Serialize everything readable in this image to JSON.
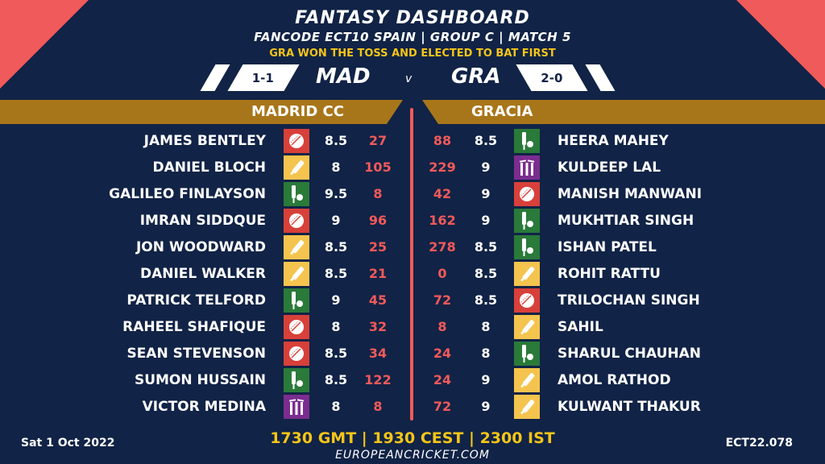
{
  "header": {
    "title": "FANTASY DASHBOARD",
    "subtitle": "FANCODE ECT10 SPAIN | GROUP C | MATCH 5",
    "toss": "GRA WON THE TOSS AND ELECTED TO BAT FIRST"
  },
  "matchup": {
    "left_record": "1-1",
    "left_code": "MAD",
    "vs": "v",
    "right_code": "GRA",
    "right_record": "2-0"
  },
  "teams": {
    "left_name": "MADRID CC",
    "right_name": "GRACIA"
  },
  "colors": {
    "background": "#112346",
    "accent_red": "#f15a5a",
    "band_gold": "#a8761a",
    "toss_yellow": "#f5c518",
    "bowler": "#d8403a",
    "batter": "#f5c44e",
    "allrounder": "#2a7a3a",
    "wicketkeeper": "#7b2d8f"
  },
  "left_players": [
    {
      "name": "JAMES BENTLEY",
      "role": "bowler-icon",
      "credit": "8.5",
      "points": "27"
    },
    {
      "name": "DANIEL BLOCH",
      "role": "batter-icon",
      "credit": "8",
      "points": "105"
    },
    {
      "name": "GALILEO FINLAYSON",
      "role": "allrounder-icon",
      "credit": "9.5",
      "points": "8"
    },
    {
      "name": "IMRAN SIDDQUE",
      "role": "bowler-icon",
      "credit": "9",
      "points": "96"
    },
    {
      "name": "JON WOODWARD",
      "role": "batter-icon",
      "credit": "8.5",
      "points": "25"
    },
    {
      "name": "DANIEL WALKER",
      "role": "batter-icon",
      "credit": "8.5",
      "points": "21"
    },
    {
      "name": "PATRICK TELFORD",
      "role": "allrounder-icon",
      "credit": "9",
      "points": "45"
    },
    {
      "name": "RAHEEL SHAFIQUE",
      "role": "bowler-icon",
      "credit": "8",
      "points": "32"
    },
    {
      "name": "SEAN STEVENSON",
      "role": "bowler-icon",
      "credit": "8.5",
      "points": "34"
    },
    {
      "name": "SUMON HUSSAIN",
      "role": "allrounder-icon",
      "credit": "8.5",
      "points": "122"
    },
    {
      "name": "VICTOR MEDINA",
      "role": "wicketkeeper-icon",
      "credit": "8",
      "points": "8"
    }
  ],
  "right_players": [
    {
      "name": "HEERA MAHEY",
      "role": "allrounder-icon",
      "credit": "8.5",
      "points": "88"
    },
    {
      "name": "KULDEEP LAL",
      "role": "wicketkeeper-icon",
      "credit": "9",
      "points": "229"
    },
    {
      "name": "MANISH MANWANI",
      "role": "bowler-icon",
      "credit": "9",
      "points": "42"
    },
    {
      "name": "MUKHTIAR SINGH",
      "role": "allrounder-icon",
      "credit": "9",
      "points": "162"
    },
    {
      "name": "ISHAN PATEL",
      "role": "allrounder-icon",
      "credit": "8.5",
      "points": "278"
    },
    {
      "name": "ROHIT RATTU",
      "role": "batter-icon",
      "credit": "8.5",
      "points": "0"
    },
    {
      "name": "TRILOCHAN SINGH",
      "role": "bowler-icon",
      "credit": "8.5",
      "points": "72"
    },
    {
      "name": "SAHIL",
      "role": "batter-icon",
      "credit": "8",
      "points": "8"
    },
    {
      "name": "SHARUL CHAUHAN",
      "role": "allrounder-icon",
      "credit": "8",
      "points": "24"
    },
    {
      "name": "AMOL RATHOD",
      "role": "batter-icon",
      "credit": "9",
      "points": "24"
    },
    {
      "name": "KULWANT THAKUR",
      "role": "batter-icon",
      "credit": "9",
      "points": "72"
    }
  ],
  "footer": {
    "date": "Sat 1 Oct 2022",
    "times": "1730 GMT | 1930 CEST | 2300 IST",
    "url": "EUROPEANCRICKET.COM",
    "code": "ECT22.078"
  }
}
